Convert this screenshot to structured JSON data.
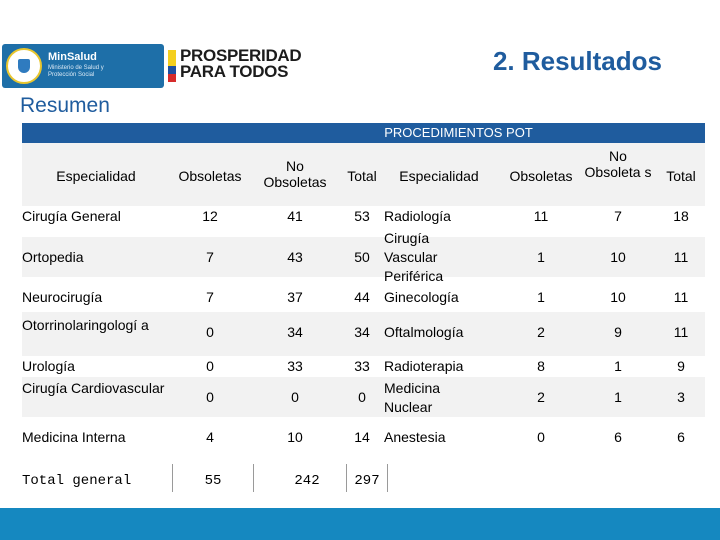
{
  "header": {
    "minsalud_title": "MinSalud",
    "minsalud_subtitle": "Ministerio de Salud y Protección Social",
    "prosperidad_line1": "PROSPERIDAD",
    "prosperidad_line2": "PARA TODOS",
    "slide_title": "2. Resultados"
  },
  "section_title": "Resumen",
  "table": {
    "caption": "PROCEDIMIENTOS POT",
    "headers_left": {
      "especialidad": "Especialidad",
      "obsoletas": "Obsoletas",
      "no_obsoletas": "No Obsoletas",
      "total": "Total"
    },
    "headers_right": {
      "especialidad": "Especialidad",
      "obsoletas": "Obsoletas",
      "no_obsoletas": "No Obsoleta s",
      "total": "Total"
    },
    "rows": [
      {
        "left_name": "Cirugía General",
        "left_obs": "12",
        "left_no": "41",
        "left_total": "53",
        "right_name": "Radiología",
        "right_obs": "11",
        "right_no": "7",
        "right_total": "18"
      },
      {
        "left_name": "Ortopedia",
        "left_obs": "7",
        "left_no": "43",
        "left_total": "50",
        "right_name": "Cirugía Vascular Periférica",
        "right_obs": "1",
        "right_no": "10",
        "right_total": "11"
      },
      {
        "left_name": "Neurocirugía",
        "left_obs": "7",
        "left_no": "37",
        "left_total": "44",
        "right_name": "Ginecología",
        "right_obs": "1",
        "right_no": "10",
        "right_total": "11"
      },
      {
        "left_name": "Otorrinolaringologí a",
        "left_obs": "0",
        "left_no": "34",
        "left_total": "34",
        "right_name": "Oftalmología",
        "right_obs": "2",
        "right_no": "9",
        "right_total": "11"
      },
      {
        "left_name": "Urología",
        "left_obs": "0",
        "left_no": "33",
        "left_total": "33",
        "right_name": "Radioterapia",
        "right_obs": "8",
        "right_no": "1",
        "right_total": "9"
      },
      {
        "left_name": "Cirugía Cardiovascular",
        "left_obs": "0",
        "left_no": "0",
        "left_total": "0",
        "right_name": "Medicina Nuclear",
        "right_obs": "2",
        "right_no": "1",
        "right_total": "3"
      },
      {
        "left_name": "Medicina Interna",
        "left_obs": "4",
        "left_no": "10",
        "left_total": "14",
        "right_name": "Anestesia",
        "right_obs": "0",
        "right_no": "6",
        "right_total": "6"
      }
    ],
    "total": {
      "label": "Total general",
      "obs": "55",
      "no": "242",
      "total": "297"
    }
  }
}
